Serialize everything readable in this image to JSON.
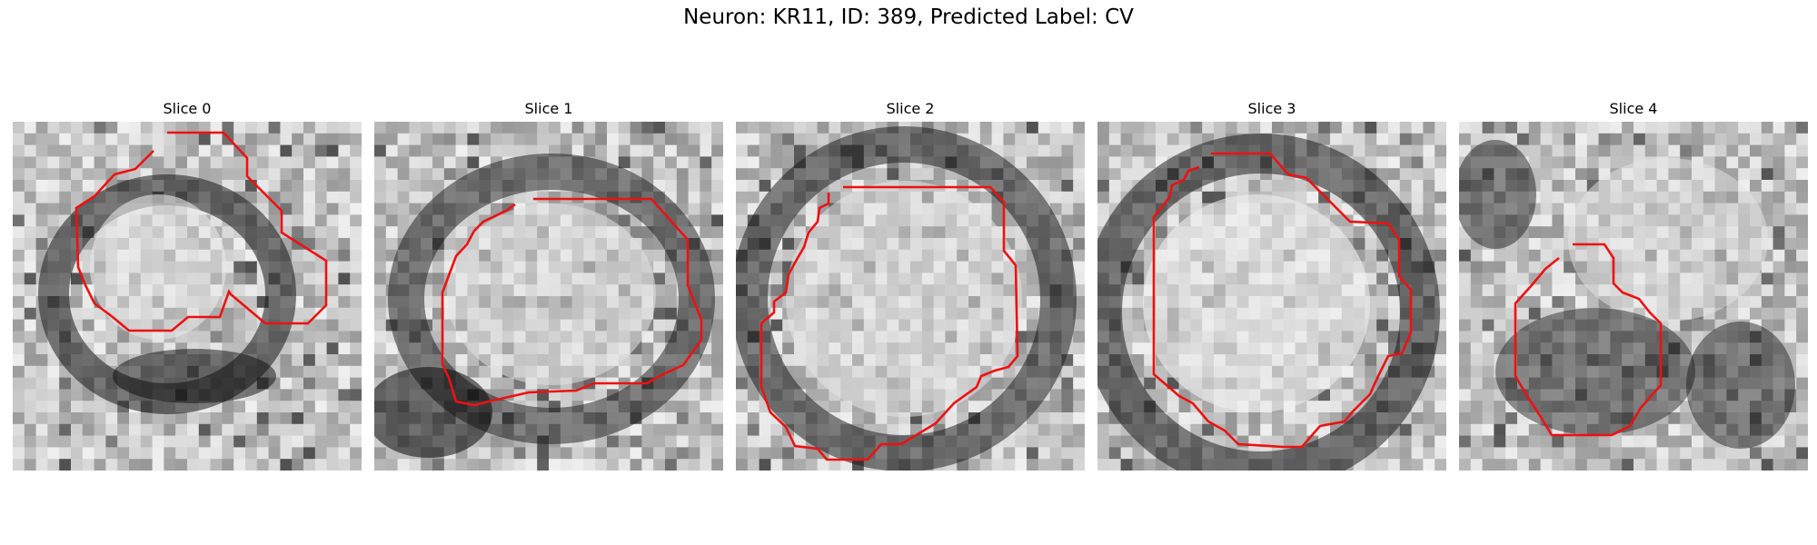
{
  "figure": {
    "title": "Neuron: KR11, ID: 389, Predicted Label: CV"
  },
  "panels": [
    {
      "title": "Slice 0"
    },
    {
      "title": "Slice 1"
    },
    {
      "title": "Slice 2"
    },
    {
      "title": "Slice 3"
    },
    {
      "title": "Slice 4"
    }
  ],
  "colors": {
    "contour": "#ee1111",
    "background": "#ffffff"
  }
}
